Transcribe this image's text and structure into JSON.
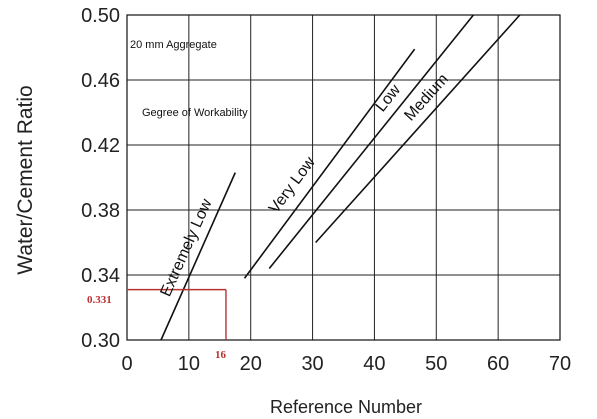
{
  "chart_data": {
    "type": "line",
    "xlabel": "Reference Number",
    "ylabel": "Water/Cement Ratio",
    "xlim": [
      0,
      70
    ],
    "ylim": [
      0.3,
      0.5
    ],
    "x_ticks": [
      "0",
      "10",
      "20",
      "30",
      "40",
      "50",
      "60",
      "70"
    ],
    "y_ticks": [
      "0.30",
      "0.34",
      "0.38",
      "0.42",
      "0.46",
      "0.50"
    ],
    "grid": true,
    "notes": [
      "20 mm Aggregate",
      "Gegree of Workability"
    ],
    "series": [
      {
        "name": "Extremely Low",
        "x": [
          5.5,
          17.5
        ],
        "y": [
          0.3,
          0.403
        ]
      },
      {
        "name": "Very Low",
        "x": [
          19,
          46.5
        ],
        "y": [
          0.338,
          0.479
        ]
      },
      {
        "name": "Low",
        "x": [
          23,
          56
        ],
        "y": [
          0.344,
          0.5
        ]
      },
      {
        "name": "Medium",
        "x": [
          30.5,
          63.5
        ],
        "y": [
          0.36,
          0.5
        ]
      }
    ],
    "marker": {
      "x": 16,
      "y": 0.331,
      "x_label": "16",
      "y_label": "0.331",
      "color": "#b8322f"
    }
  }
}
